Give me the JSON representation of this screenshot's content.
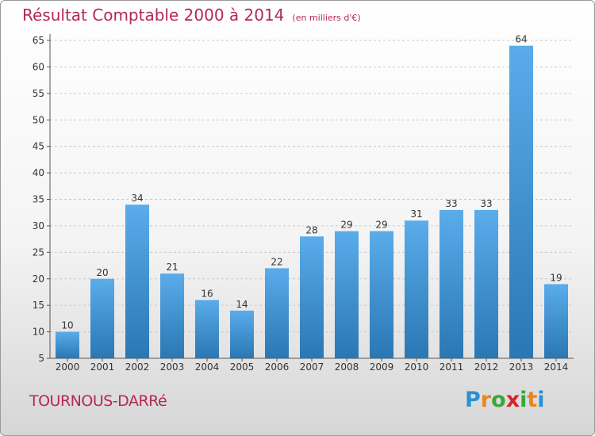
{
  "header": {
    "title": "Résultat Comptable 2000 à 2014",
    "subtitle": "(en milliers d'€)"
  },
  "footer": {
    "place": "TOURNOUS-DARRé",
    "logo_text": "Proxiti"
  },
  "colors": {
    "title": "#b5294f",
    "bar_top": "#5aacea",
    "bar_bottom": "#2a77b4"
  },
  "chart_data": {
    "type": "bar",
    "title": "Résultat Comptable 2000 à 2014",
    "subtitle": "(en milliers d'€)",
    "categories": [
      "2000",
      "2001",
      "2002",
      "2003",
      "2004",
      "2005",
      "2006",
      "2007",
      "2008",
      "2009",
      "2010",
      "2011",
      "2012",
      "2013",
      "2014"
    ],
    "values": [
      10,
      20,
      34,
      21,
      16,
      14,
      22,
      28,
      29,
      29,
      31,
      33,
      33,
      64,
      19
    ],
    "data_labels": [
      "10",
      "20",
      "34",
      "21",
      "16",
      "14",
      "22",
      "28",
      "29",
      "29",
      "31",
      "33",
      "33",
      "64",
      "19"
    ],
    "ylim": [
      5,
      65
    ],
    "yticks": [
      "5",
      "10",
      "15",
      "20",
      "25",
      "30",
      "35",
      "40",
      "45",
      "50",
      "55",
      "60",
      "65"
    ],
    "grid": true,
    "legend": "none"
  }
}
